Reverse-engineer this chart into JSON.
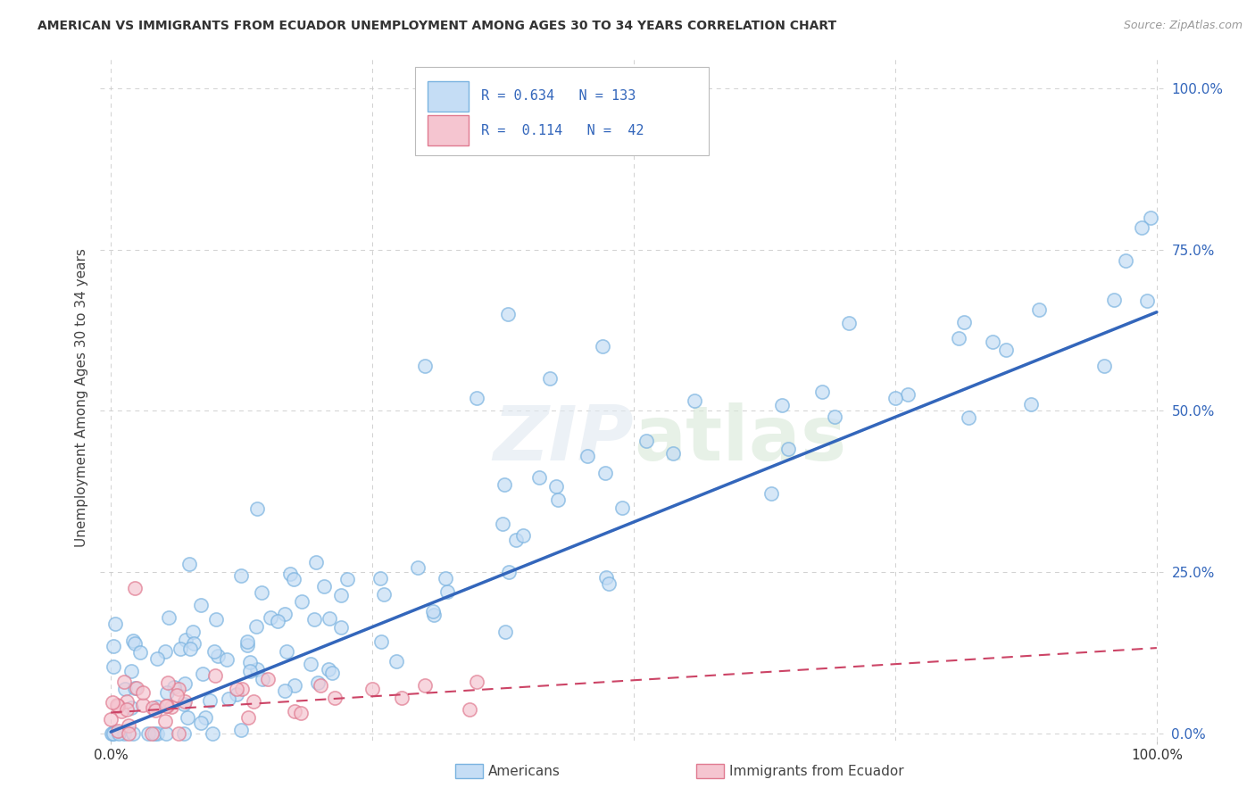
{
  "title": "AMERICAN VS IMMIGRANTS FROM ECUADOR UNEMPLOYMENT AMONG AGES 30 TO 34 YEARS CORRELATION CHART",
  "source": "Source: ZipAtlas.com",
  "ylabel": "Unemployment Among Ages 30 to 34 years",
  "americans_R": "0.634",
  "americans_N": "133",
  "immigrants_R": "0.114",
  "immigrants_N": "42",
  "americans_face_color": "#c5ddf5",
  "americans_edge_color": "#7ab3e0",
  "americans_line_color": "#3366bb",
  "immigrants_face_color": "#f5c5d0",
  "immigrants_edge_color": "#e07a90",
  "immigrants_line_color": "#cc4466",
  "watermark": "ZIPatlas",
  "background_color": "#ffffff",
  "grid_color": "#cccccc",
  "right_tick_color": "#3366bb",
  "title_color": "#333333",
  "source_color": "#999999",
  "ylabel_color": "#444444"
}
